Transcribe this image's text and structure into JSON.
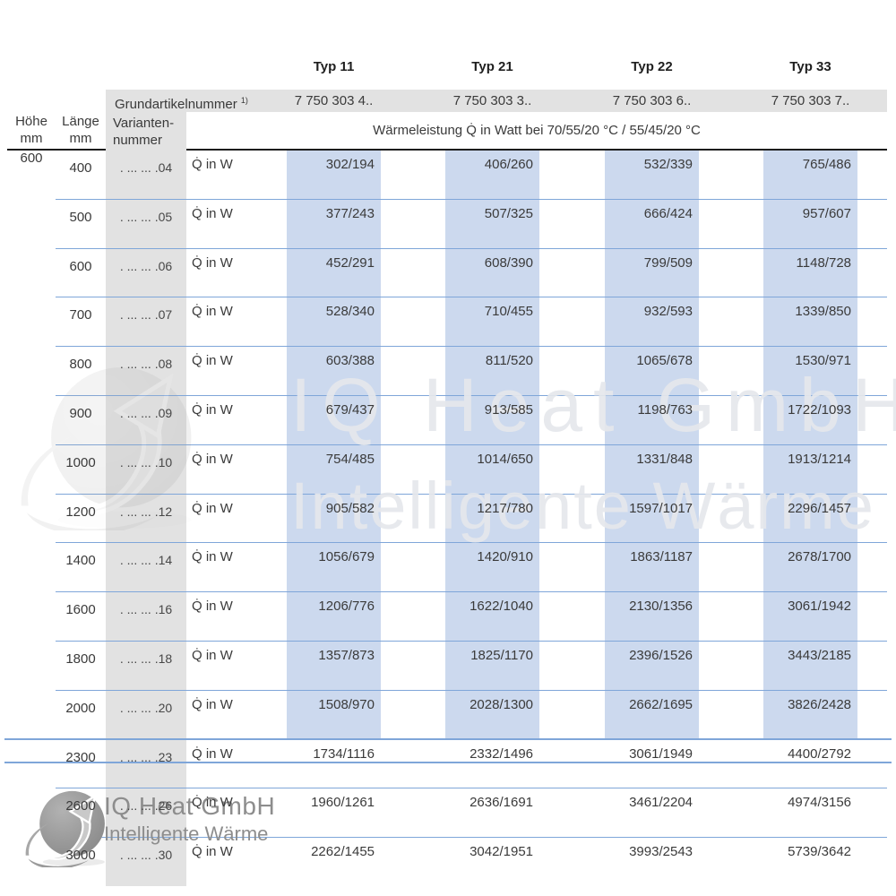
{
  "header": {
    "types": [
      "Typ 11",
      "Typ 21",
      "Typ 22",
      "Typ 33"
    ],
    "grundartikel": {
      "label": "Grundartikelnummer",
      "footnote": "1)",
      "numbers": [
        "7 750 303 4..",
        "7 750 303 3..",
        "7 750 303 6..",
        "7 750 303 7.."
      ]
    },
    "hoehe": {
      "line1": "Höhe",
      "line2": "mm"
    },
    "laenge": {
      "line1": "Länge",
      "line2": "mm"
    },
    "variante": {
      "line1": "Varianten-",
      "line2": "nummer"
    },
    "leistung": "Wärmeleistung Q̇ in Watt bei 70/55/20 °C / 55/45/20 °C"
  },
  "table": {
    "hoehe_value": "600",
    "q_label": "Q̇ in W",
    "rows": [
      {
        "laenge": "400",
        "variante": ". ... ... .04",
        "highlight": true,
        "values": [
          "302/194",
          "406/260",
          "532/339",
          "765/486"
        ]
      },
      {
        "laenge": "500",
        "variante": ". ... ... .05",
        "highlight": true,
        "values": [
          "377/243",
          "507/325",
          "666/424",
          "957/607"
        ]
      },
      {
        "laenge": "600",
        "variante": ". ... ... .06",
        "highlight": true,
        "values": [
          "452/291",
          "608/390",
          "799/509",
          "1148/728"
        ]
      },
      {
        "laenge": "700",
        "variante": ". ... ... .07",
        "highlight": true,
        "values": [
          "528/340",
          "710/455",
          "932/593",
          "1339/850"
        ]
      },
      {
        "laenge": "800",
        "variante": ". ... ... .08",
        "highlight": true,
        "values": [
          "603/388",
          "811/520",
          "1065/678",
          "1530/971"
        ]
      },
      {
        "laenge": "900",
        "variante": ". ... ... .09",
        "highlight": true,
        "values": [
          "679/437",
          "913/585",
          "1198/763",
          "1722/1093"
        ]
      },
      {
        "laenge": "1000",
        "variante": ". ... ... .10",
        "highlight": true,
        "values": [
          "754/485",
          "1014/650",
          "1331/848",
          "1913/1214"
        ]
      },
      {
        "laenge": "1200",
        "variante": ". ... ... .12",
        "highlight": true,
        "values": [
          "905/582",
          "1217/780",
          "1597/1017",
          "2296/1457"
        ]
      },
      {
        "laenge": "1400",
        "variante": ". ... ... .14",
        "highlight": true,
        "values": [
          "1056/679",
          "1420/910",
          "1863/1187",
          "2678/1700"
        ]
      },
      {
        "laenge": "1600",
        "variante": ". ... ... .16",
        "highlight": true,
        "values": [
          "1206/776",
          "1622/1040",
          "2130/1356",
          "3061/1942"
        ]
      },
      {
        "laenge": "1800",
        "variante": ". ... ... .18",
        "highlight": true,
        "values": [
          "1357/873",
          "1825/1170",
          "2396/1526",
          "3443/2185"
        ]
      },
      {
        "laenge": "2000",
        "variante": ". ... ... .20",
        "highlight": true,
        "values": [
          "1508/970",
          "2028/1300",
          "2662/1695",
          "3826/2428"
        ]
      },
      {
        "laenge": "2300",
        "variante": ". ... ... .23",
        "highlight": false,
        "values": [
          "1734/1116",
          "2332/1496",
          "3061/1949",
          "4400/2792"
        ]
      },
      {
        "laenge": "2600",
        "variante": ". ... ... .26",
        "highlight": false,
        "values": [
          "1960/1261",
          "2636/1691",
          "3461/2204",
          "4974/3156"
        ]
      },
      {
        "laenge": "3000",
        "variante": ". ... ... .30",
        "highlight": false,
        "values": [
          "2262/1455",
          "3042/1951",
          "3993/2543",
          "5739/3642"
        ]
      }
    ]
  },
  "watermark": {
    "line1": "IQ Heat GmbH",
    "line2": "Intelligente Wärme"
  },
  "footer": {
    "company": "IQ Heat GmbH",
    "tagline": "Intelligente Wärme"
  },
  "colors": {
    "highlight_cell": "#ccd9ee",
    "row_line": "#7fa6d9",
    "gray_fill": "#e2e2e2",
    "header_line": "#1c1c1c",
    "text": "#3a3a3a",
    "logo_gray": "#8d8d8d"
  }
}
